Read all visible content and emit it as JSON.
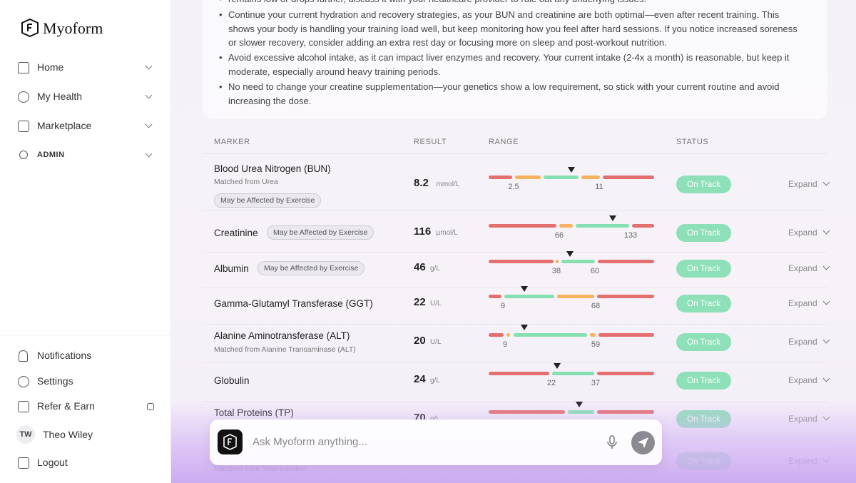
{
  "sidebar": {
    "brand": "Myoform",
    "nav": [
      "Home",
      "My Health",
      "Marketplace",
      "ADMIN"
    ],
    "bottom": [
      "Notifications",
      "Settings",
      "Refer & Earn"
    ],
    "user": {
      "initials": "TW",
      "name": "Theo Wiley"
    },
    "logout": "Logout"
  },
  "advice": [
    "remains low or drops further, discuss it with your healthcare provider to rule out any underlying issues.",
    "Continue your current hydration and recovery strategies, as your BUN and creatinine are both optimal—even after recent training. This shows your body is handling your training load well, but keep monitoring how you feel after hard sessions. If you notice increased soreness or slower recovery, consider adding an extra rest day or focusing more on sleep and post-workout nutrition.",
    "Avoid excessive alcohol intake, as it can impact liver enzymes and recovery. Your current intake (2-4x a month) is reasonable, but keep it moderate, especially around heavy training periods.",
    "No need to change your creatine supplementation—your genetics show a low requirement, so stick with your current routine and avoid increasing the dose."
  ],
  "table": {
    "headers": [
      "MARKER",
      "RESULT",
      "RANGE",
      "STATUS"
    ],
    "rows": [
      {
        "name": "Blood Urea Nitrogen (BUN)",
        "matched": "Matched from Urea",
        "badge": "May be Affected by Exercise",
        "value": "8.2",
        "unit": "mmol/L",
        "range": [
          "2.5",
          "11"
        ],
        "status": "On Track",
        "action": "Expand"
      },
      {
        "name": "Creatinine",
        "badge": "May be Affected by Exercise",
        "value": "116",
        "unit": "µmol/L",
        "range": [
          "66",
          "133"
        ],
        "status": "On Track",
        "action": "Expand"
      },
      {
        "name": "Albumin",
        "badge": "May be Affected by Exercise",
        "value": "46",
        "unit": "g/L",
        "range": [
          "38",
          "60"
        ],
        "status": "On Track",
        "action": "Expand"
      },
      {
        "name": "Gamma-Glutamyl Transferase (GGT)",
        "value": "22",
        "unit": "U/L",
        "range": [
          "9",
          "68"
        ],
        "status": "On Track",
        "action": "Expand"
      },
      {
        "name": "Alanine Aminotransferase (ALT)",
        "matched": "Matched from Alanine Transaminase (ALT)",
        "value": "20",
        "unit": "U/L",
        "range": [
          "9",
          "59"
        ],
        "status": "On Track",
        "action": "Expand"
      },
      {
        "name": "Globulin",
        "value": "24",
        "unit": "g/L",
        "range": [
          "22",
          "37"
        ],
        "status": "On Track",
        "action": "Expand"
      },
      {
        "name": "Total Proteins (TP)",
        "value": "70",
        "unit": "g/L",
        "status": "On Track",
        "action": "Expand"
      },
      {
        "matched": "Matched from Total bilirubin",
        "status": "On Track",
        "action": "Expand"
      }
    ]
  },
  "chat": {
    "placeholder": "Ask Myoform anything..."
  }
}
